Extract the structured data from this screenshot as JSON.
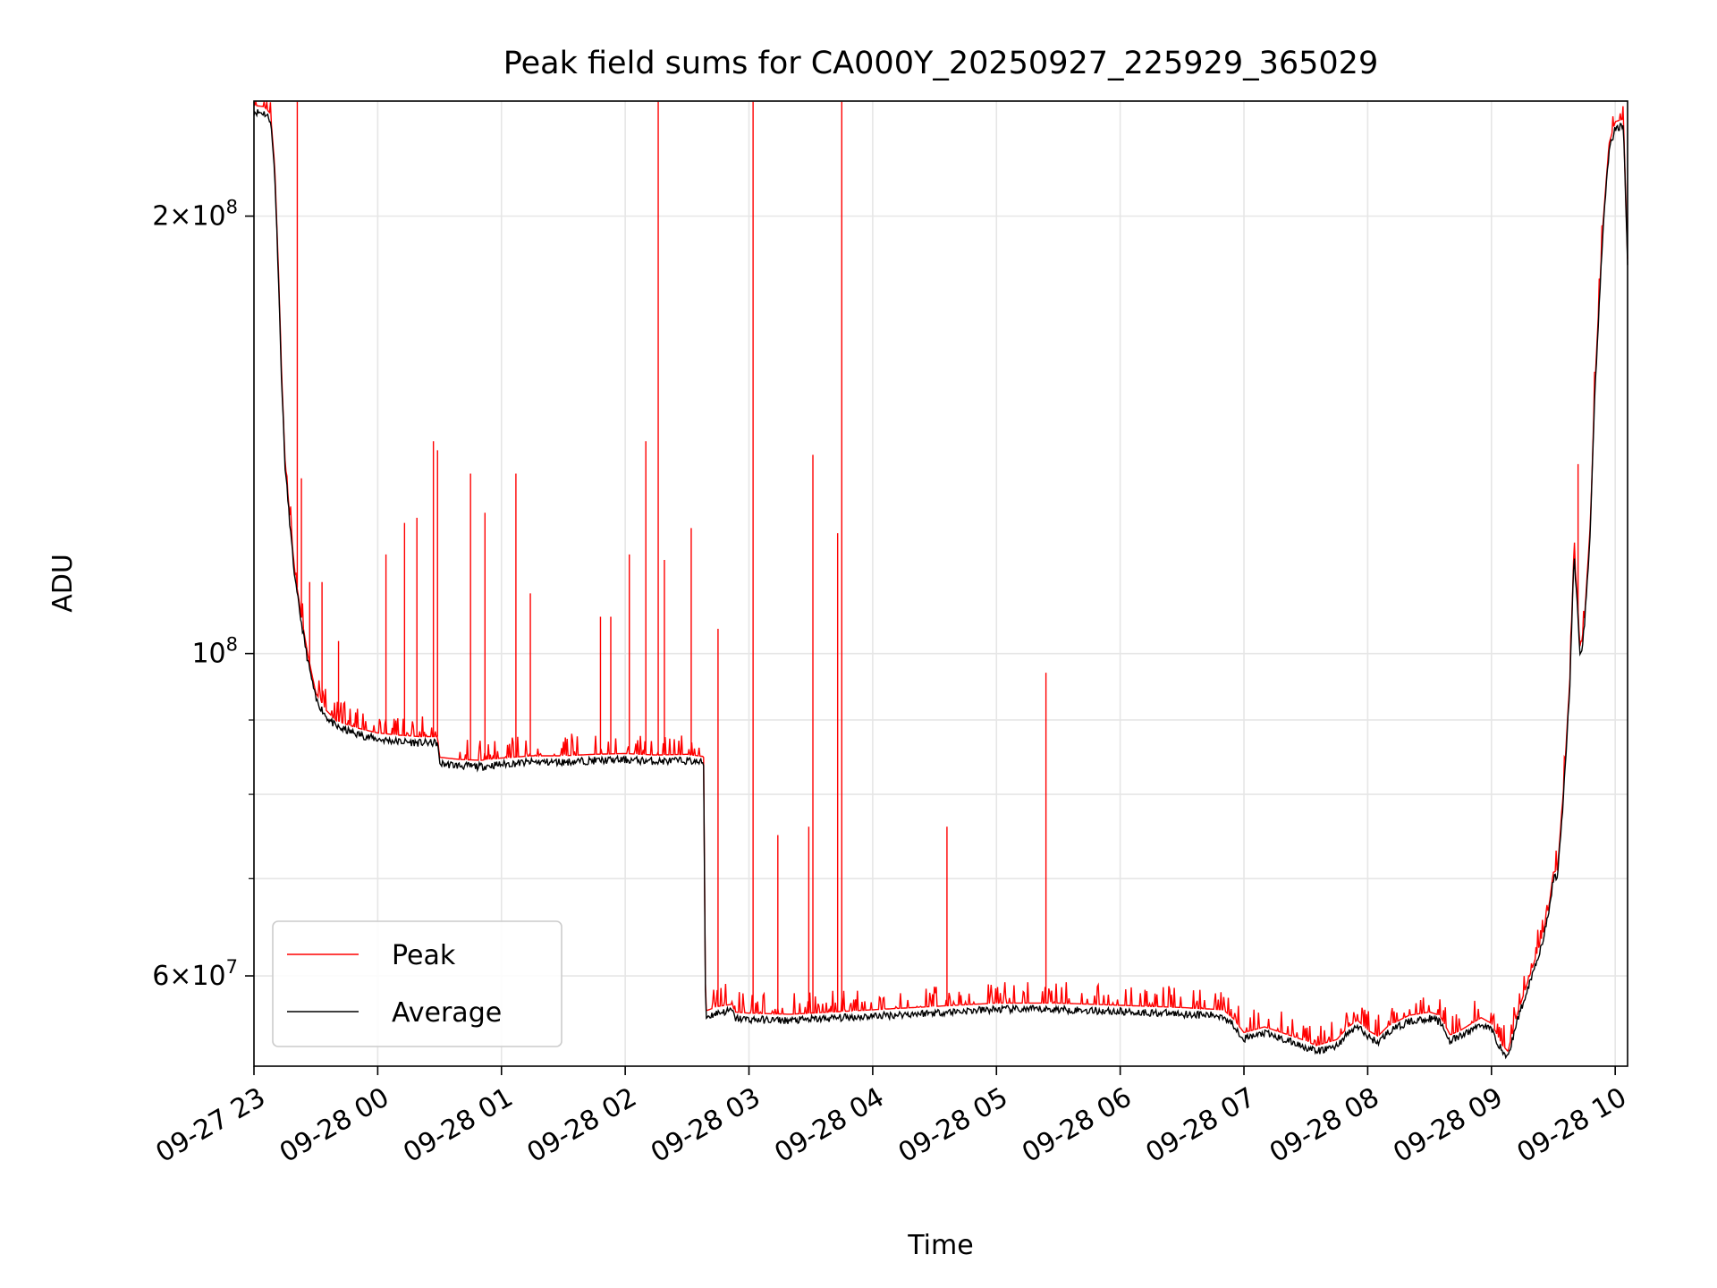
{
  "chart_data": {
    "type": "line",
    "title": "Peak field sums for CA000Y_20250927_225929_365029",
    "xlabel": "Time",
    "ylabel": "ADU",
    "y_scale": "log",
    "ylim": [
      52000000,
      240000000
    ],
    "xlim": [
      "2025-09-27 23:00",
      "2025-09-28 10:06"
    ],
    "grid": true,
    "legend_position": "lower-left",
    "x_ticks": [
      {
        "t": "2025-09-27 23:00",
        "label": "09-27 23"
      },
      {
        "t": "2025-09-28 00:00",
        "label": "09-28 00"
      },
      {
        "t": "2025-09-28 01:00",
        "label": "09-28 01"
      },
      {
        "t": "2025-09-28 02:00",
        "label": "09-28 02"
      },
      {
        "t": "2025-09-28 03:00",
        "label": "09-28 03"
      },
      {
        "t": "2025-09-28 04:00",
        "label": "09-28 04"
      },
      {
        "t": "2025-09-28 05:00",
        "label": "09-28 05"
      },
      {
        "t": "2025-09-28 06:00",
        "label": "09-28 06"
      },
      {
        "t": "2025-09-28 07:00",
        "label": "09-28 07"
      },
      {
        "t": "2025-09-28 08:00",
        "label": "09-28 08"
      },
      {
        "t": "2025-09-28 09:00",
        "label": "09-28 09"
      },
      {
        "t": "2025-09-28 10:00",
        "label": "09-28 10"
      }
    ],
    "y_major_ticks": [
      {
        "v": 60000000,
        "mant": "6",
        "exp": "7"
      },
      {
        "v": 100000000,
        "mant": "",
        "exp": "8"
      },
      {
        "v": 200000000,
        "mant": "2",
        "exp": "8"
      }
    ],
    "y_minor_ticks": [
      70000000,
      80000000,
      90000000
    ],
    "series": [
      {
        "name": "Average",
        "color": "#000000",
        "points": [
          [
            "2025-09-27 23:00",
            236000000
          ],
          [
            "2025-09-27 23:05",
            235500000
          ],
          [
            "2025-09-27 23:08",
            233000000
          ],
          [
            "2025-09-27 23:10",
            215000000
          ],
          [
            "2025-09-27 23:12",
            180000000
          ],
          [
            "2025-09-27 23:13",
            160000000
          ],
          [
            "2025-09-27 23:15",
            135000000
          ],
          [
            "2025-09-27 23:18",
            120000000
          ],
          [
            "2025-09-27 23:20",
            112000000
          ],
          [
            "2025-09-27 23:23",
            105000000
          ],
          [
            "2025-09-27 23:26",
            99000000
          ],
          [
            "2025-09-27 23:30",
            93000000
          ],
          [
            "2025-09-27 23:35",
            90500000
          ],
          [
            "2025-09-27 23:40",
            89000000
          ],
          [
            "2025-09-27 23:50",
            88000000
          ],
          [
            "2025-09-28 00:00",
            87300000
          ],
          [
            "2025-09-28 00:10",
            87000000
          ],
          [
            "2025-09-28 00:20",
            86800000
          ],
          [
            "2025-09-28 00:29",
            86800000
          ],
          [
            "2025-09-28 00:30",
            84000000
          ],
          [
            "2025-09-28 00:40",
            83700000
          ],
          [
            "2025-09-28 00:50",
            83600000
          ],
          [
            "2025-09-28 01:00",
            83900000
          ],
          [
            "2025-09-28 01:15",
            84200000
          ],
          [
            "2025-09-28 01:30",
            84200000
          ],
          [
            "2025-09-28 01:45",
            84400000
          ],
          [
            "2025-09-28 02:00",
            84500000
          ],
          [
            "2025-09-28 02:15",
            84300000
          ],
          [
            "2025-09-28 02:30",
            84400000
          ],
          [
            "2025-09-28 02:38",
            84100000
          ],
          [
            "2025-09-28 02:39",
            56200000
          ],
          [
            "2025-09-28 02:45",
            56600000
          ],
          [
            "2025-09-28 02:52",
            56800000
          ],
          [
            "2025-09-28 02:53",
            56100000
          ],
          [
            "2025-09-28 03:00",
            56000000
          ],
          [
            "2025-09-28 03:20",
            55900000
          ],
          [
            "2025-09-28 03:40",
            56100000
          ],
          [
            "2025-09-28 04:00",
            56300000
          ],
          [
            "2025-09-28 04:30",
            56600000
          ],
          [
            "2025-09-28 05:00",
            56900000
          ],
          [
            "2025-09-28 05:30",
            56900000
          ],
          [
            "2025-09-28 06:00",
            56700000
          ],
          [
            "2025-09-28 06:30",
            56500000
          ],
          [
            "2025-09-28 06:50",
            56300000
          ],
          [
            "2025-09-28 06:55",
            55500000
          ],
          [
            "2025-09-28 07:00",
            54300000
          ],
          [
            "2025-09-28 07:10",
            54800000
          ],
          [
            "2025-09-28 07:20",
            54200000
          ],
          [
            "2025-09-28 07:30",
            53600000
          ],
          [
            "2025-09-28 07:35",
            53200000
          ],
          [
            "2025-09-28 07:45",
            53700000
          ],
          [
            "2025-09-28 07:50",
            54700000
          ],
          [
            "2025-09-28 07:55",
            55400000
          ],
          [
            "2025-09-28 08:00",
            54500000
          ],
          [
            "2025-09-28 08:05",
            54000000
          ],
          [
            "2025-09-28 08:10",
            54900000
          ],
          [
            "2025-09-28 08:20",
            55800000
          ],
          [
            "2025-09-28 08:30",
            56100000
          ],
          [
            "2025-09-28 08:35",
            55800000
          ],
          [
            "2025-09-28 08:40",
            54100000
          ],
          [
            "2025-09-28 08:45",
            54500000
          ],
          [
            "2025-09-28 08:55",
            55600000
          ],
          [
            "2025-09-28 09:00",
            55100000
          ],
          [
            "2025-09-28 09:05",
            53300000
          ],
          [
            "2025-09-28 09:08",
            52700000
          ],
          [
            "2025-09-28 09:12",
            55600000
          ],
          [
            "2025-09-28 09:17",
            58500000
          ],
          [
            "2025-09-28 09:22",
            61500000
          ],
          [
            "2025-09-28 09:25",
            63500000
          ],
          [
            "2025-09-28 09:28",
            66500000
          ],
          [
            "2025-09-28 09:30",
            70000000
          ],
          [
            "2025-09-28 09:32",
            70200000
          ],
          [
            "2025-09-28 09:35",
            80000000
          ],
          [
            "2025-09-28 09:38",
            95000000
          ],
          [
            "2025-09-28 09:40",
            117000000
          ],
          [
            "2025-09-28 09:42",
            106000000
          ],
          [
            "2025-09-28 09:43",
            99000000
          ],
          [
            "2025-09-28 09:45",
            104000000
          ],
          [
            "2025-09-28 09:48",
            122000000
          ],
          [
            "2025-09-28 09:50",
            150000000
          ],
          [
            "2025-09-28 09:54",
            195000000
          ],
          [
            "2025-09-28 09:57",
            222000000
          ],
          [
            "2025-09-28 10:00",
            230000000
          ],
          [
            "2025-09-28 10:04",
            231000000
          ],
          [
            "2025-09-28 10:06",
            185000000
          ]
        ]
      },
      {
        "name": "Peak",
        "color": "#ff0000",
        "offset_ratio": 1.01,
        "spikes": [
          [
            "2025-09-27 23:21",
            240000000
          ],
          [
            "2025-09-27 23:23",
            132000000
          ],
          [
            "2025-09-27 23:27",
            112000000
          ],
          [
            "2025-09-27 23:33",
            112000000
          ],
          [
            "2025-09-27 23:41",
            102000000
          ],
          [
            "2025-09-28 00:04",
            117000000
          ],
          [
            "2025-09-28 00:13",
            123000000
          ],
          [
            "2025-09-28 00:19",
            124000000
          ],
          [
            "2025-09-28 00:27",
            140000000
          ],
          [
            "2025-09-28 00:29",
            138000000
          ],
          [
            "2025-09-28 00:45",
            133000000
          ],
          [
            "2025-09-28 00:52",
            125000000
          ],
          [
            "2025-09-28 01:07",
            133000000
          ],
          [
            "2025-09-28 01:14",
            110000000
          ],
          [
            "2025-09-28 01:48",
            106000000
          ],
          [
            "2025-09-28 01:53",
            106000000
          ],
          [
            "2025-09-28 02:02",
            117000000
          ],
          [
            "2025-09-28 02:10",
            140000000
          ],
          [
            "2025-09-28 02:16",
            240000000
          ],
          [
            "2025-09-28 02:19",
            116000000
          ],
          [
            "2025-09-28 02:32",
            122000000
          ],
          [
            "2025-09-28 02:45",
            104000000
          ],
          [
            "2025-09-28 03:02",
            240000000
          ],
          [
            "2025-09-28 03:14",
            75000000
          ],
          [
            "2025-09-28 03:29",
            76000000
          ],
          [
            "2025-09-28 03:31",
            137000000
          ],
          [
            "2025-09-28 03:43",
            121000000
          ],
          [
            "2025-09-28 03:45",
            240000000
          ],
          [
            "2025-09-28 04:36",
            76000000
          ],
          [
            "2025-09-28 05:24",
            97000000
          ],
          [
            "2025-09-28 09:42",
            135000000
          ]
        ]
      }
    ]
  }
}
